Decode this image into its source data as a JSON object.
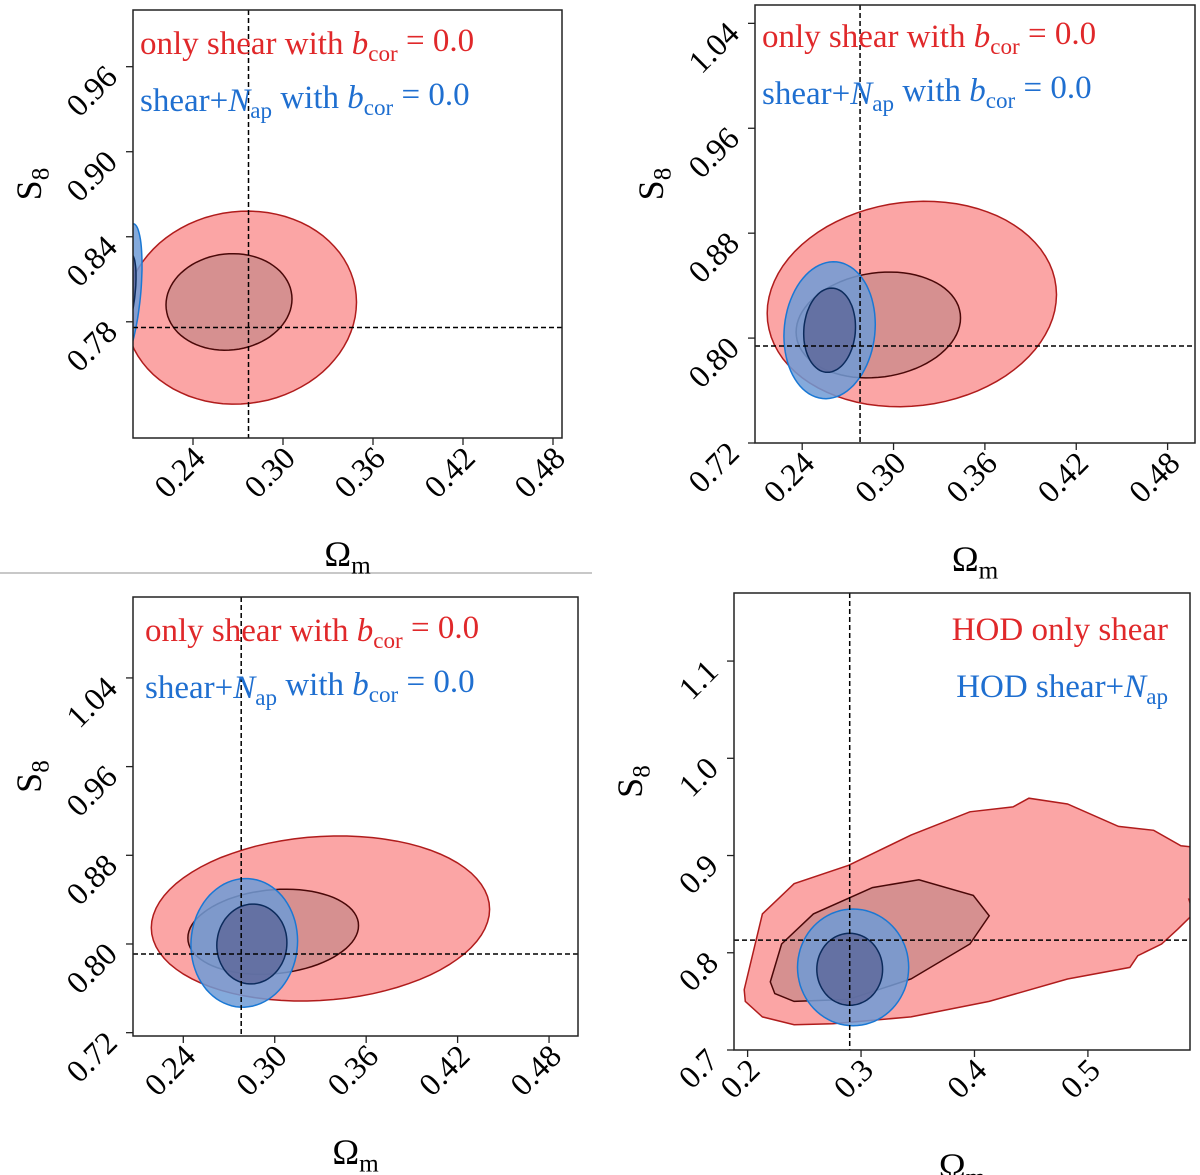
{
  "chart_data": [
    {
      "type": "contour",
      "xlabel": [
        {
          "t": "Ω"
        },
        {
          "t": "m",
          "s": "sub"
        }
      ],
      "ylabel": [
        {
          "t": "S"
        },
        {
          "t": "8",
          "s": "sub"
        }
      ],
      "xlim": [
        0.2,
        0.486
      ],
      "ylim": [
        0.698,
        1.0
      ],
      "xticks": [
        "0.24",
        "0.30",
        "0.36",
        "0.42",
        "0.48"
      ],
      "yticks": [
        "0.78",
        "0.84",
        "0.90",
        "0.96"
      ],
      "truth": {
        "x": 0.277,
        "y": 0.776
      },
      "legend_placement": "top-left",
      "legend": [
        {
          "color": "#e0282a",
          "segments": [
            {
              "t": "only shear with "
            },
            {
              "t": "b",
              "s": "i"
            },
            {
              "t": "cor",
              "s": "sub"
            },
            {
              "t": " = 0.0"
            }
          ]
        },
        {
          "color": "#1f6fd0",
          "segments": [
            {
              "t": "shear+"
            },
            {
              "t": "N",
              "s": "i"
            },
            {
              "t": "ap",
              "s": "sub"
            },
            {
              "t": " with "
            },
            {
              "t": "b",
              "s": "i"
            },
            {
              "t": "cor",
              "s": "sub"
            },
            {
              "t": " = 0.0"
            }
          ]
        }
      ],
      "contours": [
        {
          "series": "red",
          "level": "95%",
          "shape": "ellipse",
          "cx": 0.272,
          "cy": 0.79,
          "rx": 0.077,
          "ry": 0.068,
          "tilt": 0.1
        },
        {
          "series": "red",
          "level": "68%",
          "shape": "ellipse",
          "cx": 0.264,
          "cy": 0.794,
          "rx": 0.042,
          "ry": 0.034,
          "tilt": 0.1
        },
        {
          "series": "blue",
          "level": "95%",
          "shape": "ellipse",
          "cx": 0.196,
          "cy": 0.8,
          "rx": 0.01,
          "ry": 0.045,
          "tilt": 4.0
        },
        {
          "series": "blue",
          "level": "68%",
          "shape": "ellipse",
          "cx": 0.196,
          "cy": 0.8,
          "rx": 0.006,
          "ry": 0.025,
          "tilt": 4.0
        }
      ]
    },
    {
      "type": "contour",
      "xlabel": [
        {
          "t": "Ω"
        },
        {
          "t": "m",
          "s": "sub"
        }
      ],
      "ylabel": [
        {
          "t": "S"
        },
        {
          "t": "8",
          "s": "sub"
        }
      ],
      "xlim": [
        0.209,
        0.498
      ],
      "ylim": [
        0.72,
        1.054
      ],
      "xticks": [
        "0.24",
        "0.30",
        "0.36",
        "0.42",
        "0.48"
      ],
      "yticks": [
        "0.72",
        "0.80",
        "0.88",
        "0.96",
        "1.04"
      ],
      "truth": {
        "x": 0.278,
        "y": 0.794
      },
      "legend_placement": "top-left",
      "legend": [
        {
          "color": "#e0282a",
          "segments": [
            {
              "t": "only shear with "
            },
            {
              "t": "b",
              "s": "i"
            },
            {
              "t": "cor",
              "s": "sub"
            },
            {
              "t": " = 0.0"
            }
          ]
        },
        {
          "color": "#1f6fd0",
          "segments": [
            {
              "t": "shear+"
            },
            {
              "t": "N",
              "s": "i"
            },
            {
              "t": "ap",
              "s": "sub"
            },
            {
              "t": " with "
            },
            {
              "t": "b",
              "s": "i"
            },
            {
              "t": "cor",
              "s": "sub"
            },
            {
              "t": " = 0.0"
            }
          ]
        }
      ],
      "contours": [
        {
          "series": "red",
          "level": "95%",
          "shape": "ellipse",
          "cx": 0.312,
          "cy": 0.826,
          "rx": 0.095,
          "ry": 0.078,
          "tilt": 0.15
        },
        {
          "series": "red",
          "level": "68%",
          "shape": "ellipse",
          "cx": 0.29,
          "cy": 0.81,
          "rx": 0.054,
          "ry": 0.04,
          "tilt": 0.2
        },
        {
          "series": "blue",
          "level": "95%",
          "shape": "ellipse",
          "cx": 0.258,
          "cy": 0.806,
          "rx": 0.03,
          "ry": 0.052,
          "tilt": 0.3
        },
        {
          "series": "blue",
          "level": "68%",
          "shape": "ellipse",
          "cx": 0.258,
          "cy": 0.806,
          "rx": 0.017,
          "ry": 0.032,
          "tilt": 0.3
        }
      ]
    },
    {
      "type": "contour",
      "xlabel": [
        {
          "t": "Ω"
        },
        {
          "t": "m",
          "s": "sub"
        }
      ],
      "ylabel": [
        {
          "t": "S"
        },
        {
          "t": "8",
          "s": "sub"
        }
      ],
      "xlim": [
        0.207,
        0.499
      ],
      "ylim": [
        0.717,
        1.113
      ],
      "xticks": [
        "0.24",
        "0.30",
        "0.36",
        "0.42",
        "0.48"
      ],
      "yticks": [
        "0.72",
        "0.80",
        "0.88",
        "0.96",
        "1.04"
      ],
      "truth": {
        "x": 0.278,
        "y": 0.791
      },
      "legend_placement": "top-left",
      "legend": [
        {
          "color": "#e0282a",
          "segments": [
            {
              "t": "only shear with "
            },
            {
              "t": "b",
              "s": "i"
            },
            {
              "t": "cor",
              "s": "sub"
            },
            {
              "t": " = 0.0"
            }
          ]
        },
        {
          "color": "#1f6fd0",
          "segments": [
            {
              "t": "shear+"
            },
            {
              "t": "N",
              "s": "i"
            },
            {
              "t": "ap",
              "s": "sub"
            },
            {
              "t": " with "
            },
            {
              "t": "b",
              "s": "i"
            },
            {
              "t": "cor",
              "s": "sub"
            },
            {
              "t": " = 0.0"
            }
          ]
        }
      ],
      "contours": [
        {
          "series": "red",
          "level": "95%",
          "shape": "ellipse",
          "cx": 0.33,
          "cy": 0.823,
          "rx": 0.111,
          "ry": 0.074,
          "tilt": 0.15
        },
        {
          "series": "red",
          "level": "68%",
          "shape": "ellipse",
          "cx": 0.299,
          "cy": 0.811,
          "rx": 0.056,
          "ry": 0.038,
          "tilt": 0.2
        },
        {
          "series": "blue",
          "level": "95%",
          "shape": "ellipse",
          "cx": 0.28,
          "cy": 0.801,
          "rx": 0.035,
          "ry": 0.058,
          "tilt": 0.1
        },
        {
          "series": "blue",
          "level": "68%",
          "shape": "ellipse",
          "cx": 0.285,
          "cy": 0.8,
          "rx": 0.023,
          "ry": 0.036,
          "tilt": 0.1
        }
      ]
    },
    {
      "type": "contour",
      "xlabel": [
        {
          "t": "Ω"
        },
        {
          "t": "m",
          "s": "sub"
        }
      ],
      "ylabel": [
        {
          "t": "S"
        },
        {
          "t": "8",
          "s": "sub"
        }
      ],
      "xlim": [
        0.188,
        0.59
      ],
      "ylim": [
        0.7,
        1.17
      ],
      "xticks": [
        "0.2",
        "0.3",
        "0.4",
        "0.5"
      ],
      "yticks": [
        "0.7",
        "0.8",
        "0.9",
        "1.0",
        "1.1"
      ],
      "truth": {
        "x": 0.29,
        "y": 0.813
      },
      "legend_placement": "top-right",
      "legend": [
        {
          "color": "#e0282a",
          "segments": [
            {
              "t": "HOD only shear"
            }
          ]
        },
        {
          "color": "#1f6fd0",
          "segments": [
            {
              "t": "HOD shear+"
            },
            {
              "t": "N",
              "s": "i"
            },
            {
              "t": "ap",
              "s": "sub"
            }
          ]
        }
      ],
      "contours": [
        {
          "series": "red",
          "level": "95%",
          "shape": "polygon",
          "points": [
            [
              0.197,
              0.762
            ],
            [
              0.213,
              0.84
            ],
            [
              0.241,
              0.871
            ],
            [
              0.289,
              0.89
            ],
            [
              0.344,
              0.921
            ],
            [
              0.396,
              0.945
            ],
            [
              0.434,
              0.95
            ],
            [
              0.448,
              0.959
            ],
            [
              0.482,
              0.953
            ],
            [
              0.527,
              0.93
            ],
            [
              0.558,
              0.926
            ],
            [
              0.582,
              0.91
            ],
            [
              0.6,
              0.908
            ],
            [
              0.6,
              0.852
            ],
            [
              0.589,
              0.855
            ],
            [
              0.593,
              0.84
            ],
            [
              0.579,
              0.824
            ],
            [
              0.565,
              0.809
            ],
            [
              0.544,
              0.797
            ],
            [
              0.537,
              0.785
            ],
            [
              0.482,
              0.773
            ],
            [
              0.413,
              0.75
            ],
            [
              0.344,
              0.734
            ],
            [
              0.275,
              0.727
            ],
            [
              0.241,
              0.726
            ],
            [
              0.213,
              0.734
            ],
            [
              0.198,
              0.75
            ]
          ]
        },
        {
          "series": "red",
          "level": "68%",
          "shape": "polygon",
          "points": [
            [
              0.22,
              0.77
            ],
            [
              0.23,
              0.809
            ],
            [
              0.258,
              0.84
            ],
            [
              0.31,
              0.867
            ],
            [
              0.351,
              0.875
            ],
            [
              0.399,
              0.859
            ],
            [
              0.413,
              0.838
            ],
            [
              0.396,
              0.809
            ],
            [
              0.344,
              0.773
            ],
            [
              0.289,
              0.752
            ],
            [
              0.241,
              0.75
            ],
            [
              0.224,
              0.758
            ]
          ]
        },
        {
          "series": "blue",
          "level": "95%",
          "shape": "ellipse",
          "cx": 0.293,
          "cy": 0.785,
          "rx": 0.049,
          "ry": 0.06,
          "tilt": 0.0
        },
        {
          "series": "blue",
          "level": "68%",
          "shape": "ellipse",
          "cx": 0.29,
          "cy": 0.783,
          "rx": 0.029,
          "ry": 0.037,
          "tilt": 0.0
        }
      ]
    }
  ],
  "colors": {
    "red_outer_fill": "#fba5a5",
    "red_outer_edge": "#b01c1c",
    "red_inner_fill": "#d69090",
    "red_inner_edge": "#4a0808",
    "blue_outer_fill": "#6f9bd6",
    "blue_outer_edge": "#1a78d4",
    "blue_inner_fill": "#5f6a9c",
    "blue_inner_edge": "#0c2b5c"
  }
}
